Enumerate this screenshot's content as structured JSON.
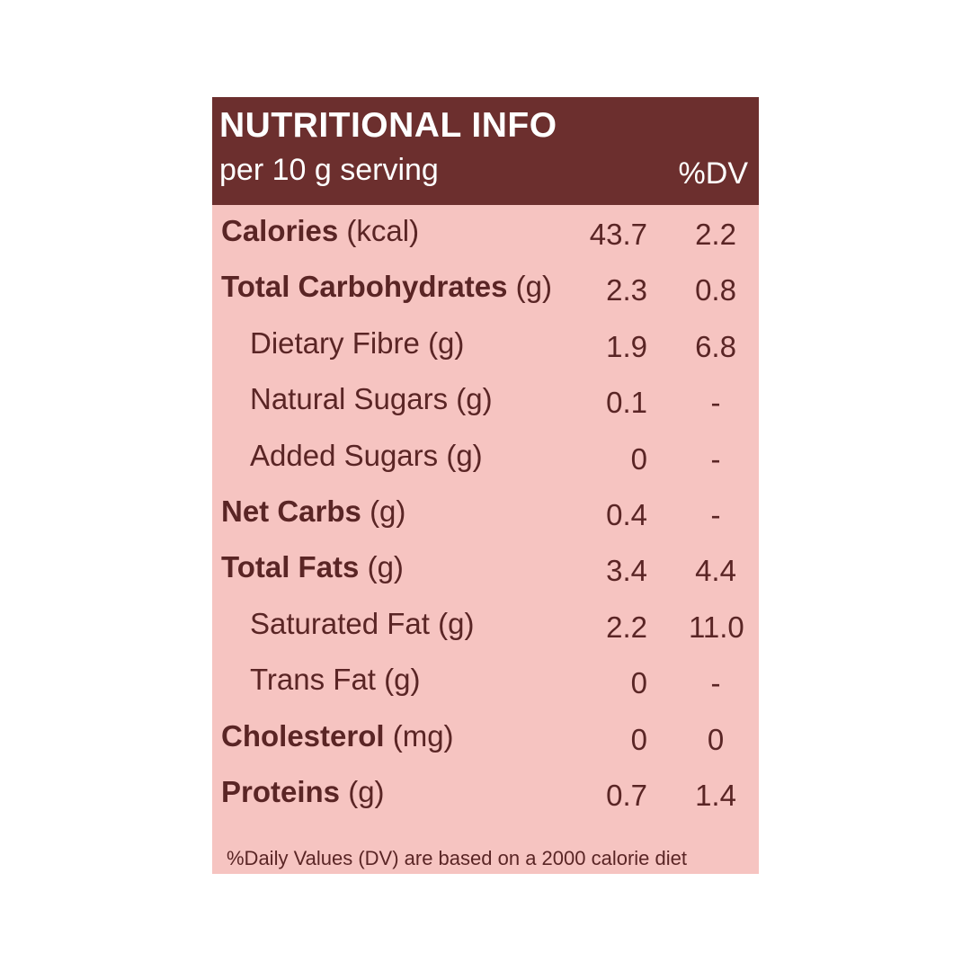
{
  "header": {
    "title": "NUTRITIONAL INFO",
    "serving": "per 10 g serving",
    "dv_label": "%DV"
  },
  "rows": [
    {
      "label": "Calories",
      "unit": "(kcal)",
      "amount": "43.7",
      "dv": "2.2",
      "level": "main"
    },
    {
      "label": "Total Carbohydrates",
      "unit": "(g)",
      "amount": "2.3",
      "dv": "0.8",
      "level": "main"
    },
    {
      "label": "Dietary Fibre",
      "unit": "(g)",
      "amount": "1.9",
      "dv": "6.8",
      "level": "sub"
    },
    {
      "label": "Natural Sugars",
      "unit": "(g)",
      "amount": "0.1",
      "dv": "-",
      "level": "sub"
    },
    {
      "label": "Added Sugars",
      "unit": "(g)",
      "amount": "0",
      "dv": "-",
      "level": "sub"
    },
    {
      "label": "Net Carbs",
      "unit": "(g)",
      "amount": "0.4",
      "dv": "-",
      "level": "main"
    },
    {
      "label": "Total Fats",
      "unit": "(g)",
      "amount": "3.4",
      "dv": "4.4",
      "level": "main"
    },
    {
      "label": "Saturated Fat",
      "unit": "(g)",
      "amount": "2.2",
      "dv": "11.0",
      "level": "sub"
    },
    {
      "label": "Trans Fat",
      "unit": "(g)",
      "amount": "0",
      "dv": "-",
      "level": "sub"
    },
    {
      "label": "Cholesterol",
      "unit": "(mg)",
      "amount": "0",
      "dv": "0",
      "level": "main"
    },
    {
      "label": "Proteins",
      "unit": "(g)",
      "amount": "0.7",
      "dv": "1.4",
      "level": "main"
    }
  ],
  "footnote": "%Daily Values (DV) are based on a 2000 calorie diet",
  "colors": {
    "header_bg": "#6c2f2e",
    "panel_bg": "#f6c4c1",
    "text": "#5a2525"
  }
}
